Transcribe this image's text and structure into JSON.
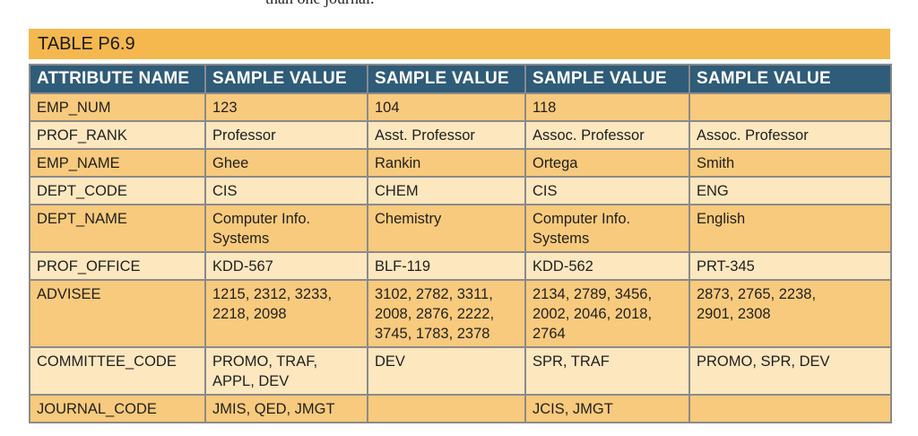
{
  "top_text": "than one journal.",
  "table_title": "TABLE P6.9",
  "headers": [
    "ATTRIBUTE NAME",
    "SAMPLE VALUE",
    "SAMPLE VALUE",
    "SAMPLE VALUE",
    "SAMPLE VALUE"
  ],
  "rows": [
    [
      "EMP_NUM",
      "123",
      "104",
      "118",
      ""
    ],
    [
      "PROF_RANK",
      "Professor",
      "Asst. Professor",
      "Assoc. Professor",
      "Assoc. Professor"
    ],
    [
      "EMP_NAME",
      "Ghee",
      "Rankin",
      "Ortega",
      "Smith"
    ],
    [
      "DEPT_CODE",
      "CIS",
      "CHEM",
      "CIS",
      "ENG"
    ],
    [
      "DEPT_NAME",
      "Computer Info.\nSystems",
      "Chemistry",
      "Computer Info.\nSystems",
      "English"
    ],
    [
      "PROF_OFFICE",
      "KDD-567",
      "BLF-119",
      "KDD-562",
      "PRT-345"
    ],
    [
      "ADVISEE",
      "1215, 2312, 3233,\n2218, 2098",
      "3102, 2782, 3311,\n2008, 2876, 2222,\n3745, 1783, 2378",
      "2134, 2789, 3456,\n2002, 2046, 2018,\n2764",
      "2873, 2765, 2238,\n2901, 2308"
    ],
    [
      "COMMITTEE_CODE",
      "PROMO, TRAF,\nAPPL, DEV",
      "DEV",
      "SPR, TRAF",
      "PROMO, SPR, DEV"
    ],
    [
      "JOURNAL_CODE",
      "JMIS, QED, JMGT",
      "",
      "JCIS, JMGT",
      ""
    ]
  ]
}
